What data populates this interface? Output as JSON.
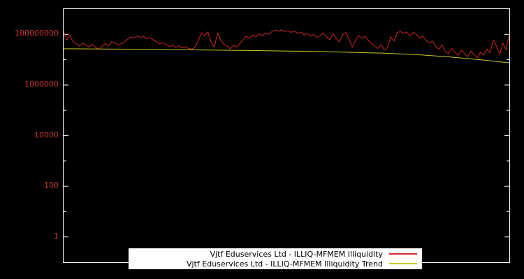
{
  "chart_data": {
    "type": "line",
    "title": "",
    "xlabel": "",
    "ylabel": "",
    "background_color": "#000000",
    "plot_border_color": "#ffffff",
    "axis_label_color": "#cc3333",
    "grid": false,
    "yscale": "log",
    "ylim": [
      0.1,
      1000000000.0
    ],
    "x_range": [
      0,
      139
    ],
    "yticks": [
      {
        "label": "100000000",
        "value": 100000000.0
      },
      {
        "label": "1000000",
        "value": 1000000.0
      },
      {
        "label": "10000",
        "value": 10000.0
      },
      {
        "label": "100",
        "value": 100
      },
      {
        "label": "1",
        "value": 1
      }
    ],
    "minor_tick_values": [
      0.1,
      10,
      1000,
      100000,
      10000000,
      1000000000
    ],
    "series": [
      {
        "name": "Vjtf Eduservices Ltd - ILLIQ-MFMEM Illiquidity",
        "color": "#cc2626",
        "values": [
          130000000.0,
          60000000.0,
          90000000.0,
          50000000.0,
          42000000.0,
          35000000.0,
          45000000.0,
          38000000.0,
          32000000.0,
          40000000.0,
          30000000.0,
          26000000.0,
          34000000.0,
          44000000.0,
          36000000.0,
          52000000.0,
          46000000.0,
          39000000.0,
          43000000.0,
          50000000.0,
          65000000.0,
          80000000.0,
          72000000.0,
          88000000.0,
          76000000.0,
          82000000.0,
          68000000.0,
          74000000.0,
          60000000.0,
          50000000.0,
          42000000.0,
          48000000.0,
          39000000.0,
          33000000.0,
          37000000.0,
          31000000.0,
          35000000.0,
          29000000.0,
          33000000.0,
          28000000.0,
          26000000.0,
          32000000.0,
          55000000.0,
          115000000.0,
          90000000.0,
          125000000.0,
          50000000.0,
          31000000.0,
          110000000.0,
          60000000.0,
          40000000.0,
          34000000.0,
          27000000.0,
          38000000.0,
          32000000.0,
          44000000.0,
          62000000.0,
          85000000.0,
          70000000.0,
          95000000.0,
          80000000.0,
          105000000.0,
          90000000.0,
          115000000.0,
          100000000.0,
          130000000.0,
          145000000.0,
          135000000.0,
          150000000.0,
          130000000.0,
          140000000.0,
          120000000.0,
          135000000.0,
          110000000.0,
          125000000.0,
          95000000.0,
          110000000.0,
          85000000.0,
          100000000.0,
          75000000.0,
          90000000.0,
          115000000.0,
          80000000.0,
          60000000.0,
          105000000.0,
          70000000.0,
          50000000.0,
          95000000.0,
          120000000.0,
          65000000.0,
          32000000.0,
          55000000.0,
          90000000.0,
          70000000.0,
          85000000.0,
          60000000.0,
          45000000.0,
          35000000.0,
          28000000.0,
          40000000.0,
          24000000.0,
          30000000.0,
          80000000.0,
          55000000.0,
          115000000.0,
          130000000.0,
          110000000.0,
          125000000.0,
          90000000.0,
          120000000.0,
          100000000.0,
          70000000.0,
          85000000.0,
          60000000.0,
          45000000.0,
          55000000.0,
          35000000.0,
          26000000.0,
          38000000.0,
          22000000.0,
          17000000.0,
          28000000.0,
          20000000.0,
          15000000.0,
          24000000.0,
          18000000.0,
          13000000.0,
          22000000.0,
          16000000.0,
          12000000.0,
          20000000.0,
          15000000.0,
          26000000.0,
          19000000.0,
          60000000.0,
          35000000.0,
          16000000.0,
          45000000.0,
          25000000.0,
          105000000.0
        ]
      },
      {
        "name": "Vjtf Eduservices Ltd - ILLIQ-MFMEM Illiquidity Trend",
        "color": "#c9c926",
        "points": [
          [
            0,
            27000000.0
          ],
          [
            20,
            26000000.0
          ],
          [
            40,
            24500000.0
          ],
          [
            60,
            23000000.0
          ],
          [
            80,
            21000000.0
          ],
          [
            100,
            18000000.0
          ],
          [
            110,
            16000000.0
          ],
          [
            120,
            13000000.0
          ],
          [
            130,
            10000000.0
          ],
          [
            139,
            7500000.0
          ]
        ]
      }
    ],
    "legend": {
      "position": "bottom-center-inside",
      "entries": [
        {
          "label": "Vjtf Eduservices Ltd - ILLIQ-MFMEM Illiquidity",
          "color": "#cc2626"
        },
        {
          "label": "Vjtf Eduservices Ltd - ILLIQ-MFMEM Illiquidity Trend",
          "color": "#c9c926"
        }
      ]
    }
  }
}
